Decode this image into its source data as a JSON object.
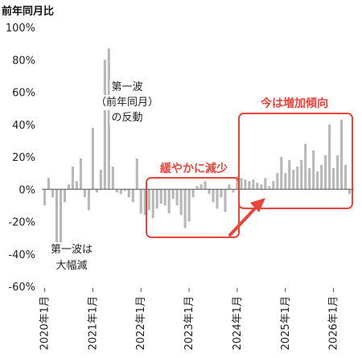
{
  "chart_data": {
    "type": "bar",
    "title": "前年同月比",
    "y_ticks": [
      "100%",
      "80%",
      "60%",
      "40%",
      "20%",
      "0%",
      "-20%",
      "-40%",
      "-60%"
    ],
    "ylim": [
      -60,
      100
    ],
    "x_ticks": [
      "2020年1月",
      "2021年1月",
      "2022年1月",
      "2023年1月",
      "2024年1月",
      "2025年1月",
      "2026年1月"
    ],
    "bar_color": "#b8b8b8",
    "accent_color": "#e8453c",
    "values": [
      -10,
      7,
      -5,
      -45,
      -40,
      -8,
      3,
      14,
      5,
      19,
      -5,
      -13,
      38,
      -2,
      12,
      80,
      87,
      14,
      -2,
      -3,
      -1,
      -5,
      -8,
      19,
      -15,
      -16,
      -13,
      -18,
      -12,
      -9,
      -10,
      -15,
      -6,
      -10,
      -16,
      -24,
      -20,
      -5,
      2,
      3,
      5,
      -3,
      -8,
      -12,
      -5,
      -14,
      3,
      -2,
      8,
      7,
      6,
      5,
      6,
      4,
      3,
      7,
      2,
      5,
      10,
      20,
      10,
      18,
      12,
      14,
      18,
      28,
      13,
      24,
      11,
      15,
      21,
      40,
      13,
      21,
      43,
      15,
      -3
    ],
    "annotations": [
      {
        "lines": [
          "第一波",
          "（前年同月）",
          "の反動"
        ]
      },
      {
        "lines": [
          "第一波は",
          "大幅減"
        ]
      },
      {
        "lines": [
          "緩やかに減少"
        ]
      },
      {
        "lines": [
          "今は増加傾向"
        ]
      }
    ]
  }
}
